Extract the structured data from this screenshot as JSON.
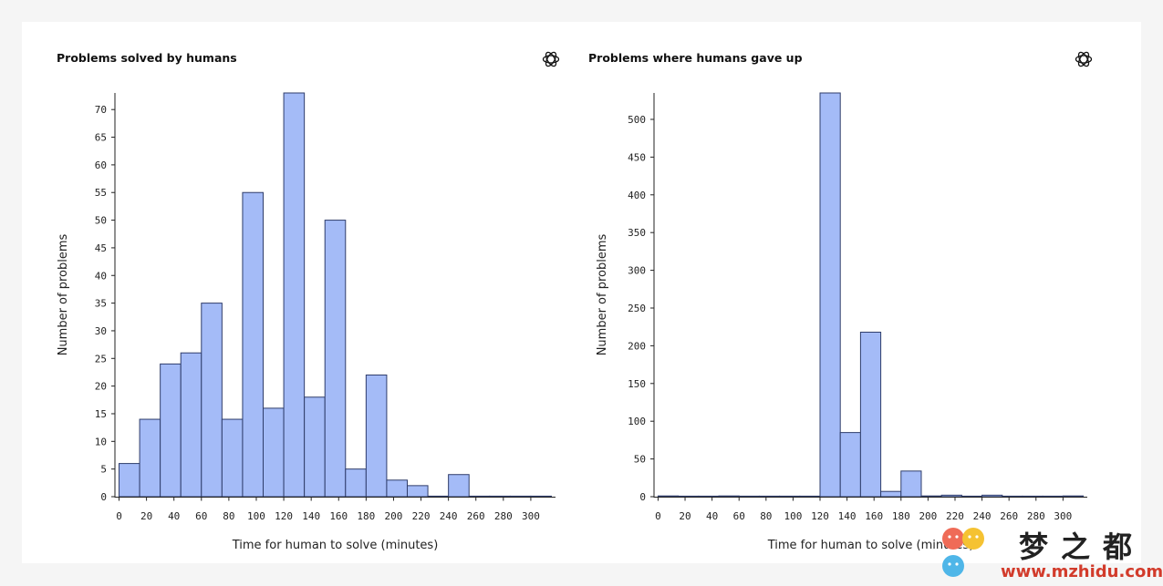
{
  "chart_data": [
    {
      "type": "bar",
      "title": "Problems solved by humans",
      "xlabel": "Time for human to solve (minutes)",
      "ylabel": "Number of problems",
      "bin_width": 15,
      "bin_starts": [
        0,
        15,
        30,
        45,
        60,
        75,
        90,
        105,
        120,
        135,
        150,
        165,
        180,
        195,
        210,
        225,
        240,
        255,
        270,
        285,
        300
      ],
      "values": [
        6,
        14,
        24,
        26,
        35,
        14,
        55,
        16,
        73,
        18,
        50,
        5,
        22,
        3,
        2,
        0,
        4,
        0,
        0,
        0,
        0
      ],
      "xlim": [
        -3,
        318
      ],
      "ylim": [
        0,
        73
      ],
      "xticks": [
        0,
        20,
        40,
        60,
        80,
        100,
        120,
        140,
        160,
        180,
        200,
        220,
        240,
        260,
        280,
        300
      ],
      "yticks": [
        0,
        5,
        10,
        15,
        20,
        25,
        30,
        35,
        40,
        45,
        50,
        55,
        60,
        65,
        70
      ],
      "grid": false
    },
    {
      "type": "bar",
      "title": "Problems where humans gave up",
      "xlabel": "Time for human to solve (minutes)",
      "ylabel": "Number of problems",
      "bin_width": 15,
      "bin_starts": [
        0,
        15,
        30,
        45,
        60,
        75,
        90,
        105,
        120,
        135,
        150,
        165,
        180,
        195,
        210,
        225,
        240,
        255,
        270,
        285,
        300
      ],
      "values": [
        1,
        0,
        0,
        1,
        0,
        0,
        0,
        0,
        535,
        85,
        218,
        7,
        34,
        1,
        2,
        0,
        2,
        0,
        0,
        0,
        1
      ],
      "xlim": [
        -3,
        318
      ],
      "ylim": [
        0,
        535
      ],
      "xticks": [
        0,
        20,
        40,
        60,
        80,
        100,
        120,
        140,
        160,
        180,
        200,
        220,
        240,
        260,
        280,
        300
      ],
      "yticks": [
        0,
        50,
        100,
        150,
        200,
        250,
        300,
        350,
        400,
        450,
        500
      ],
      "grid": false
    }
  ],
  "colors": {
    "bar_fill": "#a4bbf7",
    "bar_stroke": "#2f3d6b",
    "background": "#f5f5f5",
    "card": "#ffffff"
  },
  "icons": {
    "brand_logo": "openai-logo-icon"
  },
  "watermark": {
    "name": "梦之都",
    "url": "www.mzhidu.com"
  }
}
